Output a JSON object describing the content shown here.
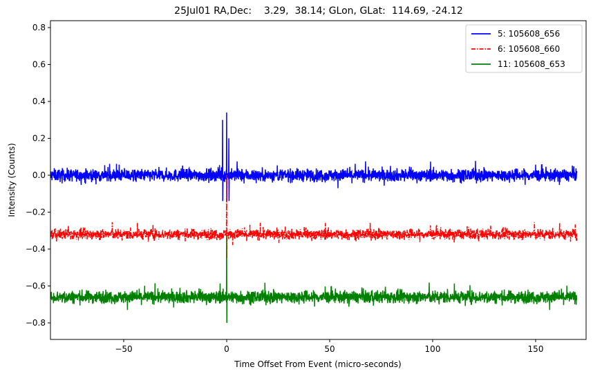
{
  "chart_data": {
    "type": "line",
    "title": "25Jul01 RA,Dec:    3.29,  38.14; GLon, GLat:  114.69, -24.12",
    "xlabel": "Time Offset From Event (micro-seconds)",
    "ylabel": "Intensity (Counts)",
    "xlim": [
      -86,
      170
    ],
    "ylim": [
      -0.88,
      0.83
    ],
    "xticks": [
      -50,
      0,
      50,
      100,
      150
    ],
    "xtick_labels": [
      "−50",
      "0",
      "50",
      "100",
      "150"
    ],
    "yticks": [
      0.8,
      0.6,
      0.4,
      0.2,
      0.0,
      -0.2,
      -0.4,
      -0.6,
      -0.8
    ],
    "ytick_labels": [
      "0.8",
      "0.6",
      "0.4",
      "0.2",
      "0.0",
      "−0.2",
      "−0.4",
      "−0.6",
      "−0.8"
    ],
    "grid": false,
    "legend_position": "upper right",
    "series": [
      {
        "name": "5: 105608_656",
        "label": "  5: 105608_656",
        "color": "#0000ff",
        "linestyle": "solid",
        "baseline": 0.0,
        "noise_amplitude": 0.06,
        "spike_x": [
          -2,
          0,
          1
        ],
        "spike_y": [
          0.3,
          0.34,
          0.2
        ],
        "dip_y": -0.14
      },
      {
        "name": "6: 105608_660",
        "label": "  6: 105608_660",
        "color": "#ff0000",
        "linestyle": "dashdot",
        "baseline": -0.32,
        "noise_amplitude": 0.05,
        "spike_x": [
          0
        ],
        "spike_y": [
          0.0
        ],
        "dip_y": -0.45
      },
      {
        "name": "11: 105608_653",
        "label": "11: 105608_653",
        "color": "#008000",
        "linestyle": "solid",
        "baseline": -0.66,
        "noise_amplitude": 0.06,
        "spike_x": [
          0
        ],
        "spike_y": [
          -0.33
        ],
        "dip_y": -0.8
      }
    ]
  }
}
